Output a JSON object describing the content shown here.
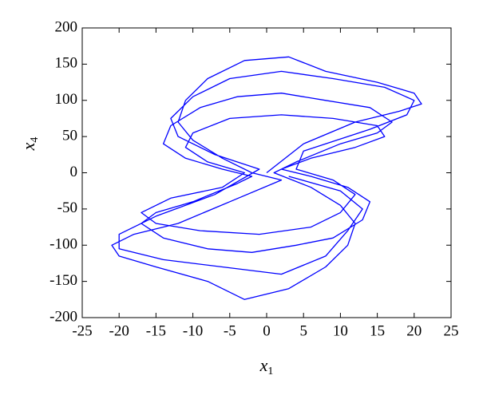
{
  "chart_data": {
    "type": "line",
    "xlabel": {
      "symbol": "x",
      "subscript": "1"
    },
    "ylabel": {
      "symbol": "x",
      "subscript": "4"
    },
    "xlim": [
      -25,
      25
    ],
    "xticks": [
      -25,
      -20,
      -15,
      -10,
      -5,
      0,
      5,
      10,
      15,
      20,
      25
    ],
    "ylim": [
      -200,
      200
    ],
    "yticks": [
      -200,
      -150,
      -100,
      -50,
      0,
      50,
      100,
      150,
      200
    ],
    "grid": false,
    "series": [
      {
        "color": "#0000ff",
        "x": [
          0,
          5,
          12,
          18,
          21,
          20,
          15,
          8,
          3,
          -3,
          -8,
          -11,
          -12,
          -10,
          -6,
          -2,
          2,
          -5,
          -12,
          -18,
          -21,
          -20,
          -15,
          -8,
          -3,
          3,
          8,
          11,
          12,
          10,
          6,
          1,
          4,
          10,
          15,
          17,
          14,
          8,
          2,
          -4,
          -9,
          -13,
          -14,
          -11,
          -6,
          -2,
          -4,
          -10,
          -15,
          -17,
          -14,
          -8,
          -2,
          4,
          9,
          13,
          14,
          11,
          6,
          2,
          6,
          12,
          16,
          15,
          9,
          2,
          -5,
          -10,
          -11,
          -8,
          -3,
          -6,
          -13,
          -17,
          -15,
          -9,
          -1,
          6,
          10,
          12,
          9,
          4,
          5,
          14,
          19,
          20,
          16,
          9,
          2,
          -5,
          -10,
          -13,
          -12,
          -7,
          -1,
          -7,
          -15,
          -20,
          -20,
          -14,
          -6,
          2,
          8,
          11,
          13,
          10,
          3
        ],
        "y": [
          0,
          40,
          70,
          85,
          95,
          110,
          125,
          140,
          160,
          155,
          130,
          100,
          70,
          45,
          20,
          0,
          -10,
          -40,
          -70,
          -85,
          -100,
          -115,
          -130,
          -150,
          -175,
          -160,
          -130,
          -100,
          -70,
          -45,
          -20,
          0,
          15,
          40,
          55,
          70,
          90,
          100,
          110,
          105,
          90,
          65,
          40,
          20,
          5,
          -5,
          -15,
          -40,
          -55,
          -70,
          -90,
          -105,
          -110,
          -100,
          -90,
          -65,
          -40,
          -20,
          -5,
          5,
          20,
          35,
          50,
          65,
          75,
          80,
          75,
          55,
          35,
          15,
          0,
          -20,
          -35,
          -55,
          -70,
          -80,
          -85,
          -75,
          -55,
          -30,
          -10,
          5,
          30,
          60,
          80,
          100,
          118,
          130,
          140,
          130,
          105,
          75,
          50,
          25,
          5,
          -30,
          -60,
          -85,
          -105,
          -120,
          -130,
          -140,
          -115,
          -80,
          -50,
          -25,
          -5
        ]
      }
    ]
  }
}
